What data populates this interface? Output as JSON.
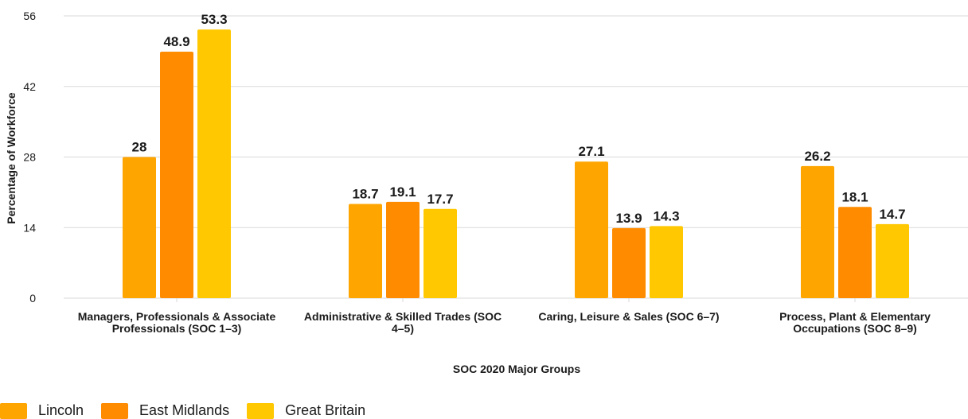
{
  "chart_data": {
    "type": "bar",
    "title": "",
    "xlabel": "SOC 2020 Major Groups",
    "ylabel": "Percentage of Workforce",
    "ylim": [
      0,
      56
    ],
    "yticks": [
      0,
      14,
      28,
      42,
      56
    ],
    "grid": true,
    "legend_position": "bottom-left",
    "categories": [
      [
        "Managers, Professionals & Associate",
        "Professionals (SOC 1–3)"
      ],
      [
        "Administrative & Skilled Trades (SOC",
        "4–5)"
      ],
      [
        "Caring, Leisure & Sales (SOC 6–7)"
      ],
      [
        "Process, Plant & Elementary",
        "Occupations (SOC 8–9)"
      ]
    ],
    "series": [
      {
        "name": "Lincoln",
        "color": "#FFA500",
        "values": [
          28,
          18.7,
          27.1,
          26.2
        ]
      },
      {
        "name": "East Midlands",
        "color": "#FF8C00",
        "values": [
          48.9,
          19.1,
          13.9,
          18.1
        ]
      },
      {
        "name": "Great Britain",
        "color": "#FFC800",
        "values": [
          53.3,
          17.7,
          14.3,
          14.7
        ]
      }
    ]
  }
}
